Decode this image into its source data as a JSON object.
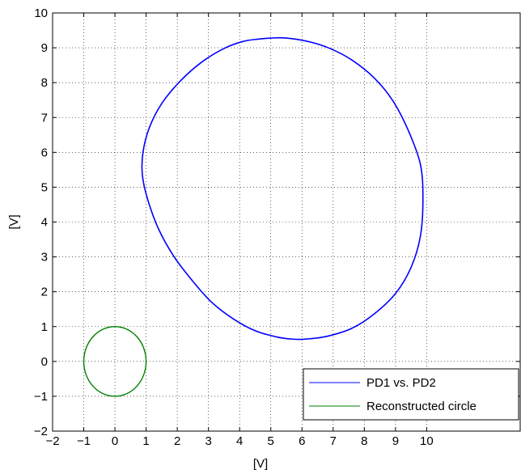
{
  "chart_data": {
    "type": "line",
    "title": "",
    "xlabel": "[V]",
    "ylabel": "[V]",
    "xlim": [
      -2,
      13
    ],
    "ylim": [
      -2,
      10
    ],
    "xticks": [
      -2,
      -1,
      0,
      1,
      2,
      3,
      4,
      5,
      6,
      7,
      8,
      9,
      10
    ],
    "yticks": [
      -2,
      -1,
      0,
      1,
      2,
      3,
      4,
      5,
      6,
      7,
      8,
      9,
      10
    ],
    "xtick_labels": [
      "−2",
      "−1",
      "0",
      "1",
      "2",
      "3",
      "4",
      "5",
      "6",
      "7",
      "8",
      "9",
      "10"
    ],
    "ytick_labels": [
      "−2",
      "−1",
      "0",
      "1",
      "2",
      "3",
      "4",
      "5",
      "6",
      "7",
      "8",
      "9",
      "10"
    ],
    "grid": true,
    "legend_position": "bottom-right",
    "series": [
      {
        "name": "PD1 vs. PD2",
        "color": "#0000ff",
        "x": [
          4.6,
          5.0,
          5.5,
          6.2,
          6.9,
          7.6,
          8.3,
          8.9,
          9.4,
          9.8,
          9.88,
          9.8,
          9.5,
          9.0,
          8.3,
          7.6,
          6.8,
          6.1,
          5.7,
          5.2,
          4.5,
          3.8,
          3.1,
          2.5,
          1.9,
          1.4,
          1.05,
          0.88,
          0.9,
          1.1,
          1.5,
          2.1,
          2.8,
          3.5,
          4.1,
          4.6
        ],
        "y": [
          9.25,
          9.28,
          9.28,
          9.18,
          8.98,
          8.65,
          8.15,
          7.5,
          6.65,
          5.65,
          4.65,
          3.6,
          2.7,
          1.95,
          1.35,
          0.95,
          0.72,
          0.64,
          0.64,
          0.7,
          0.88,
          1.22,
          1.7,
          2.3,
          3.0,
          3.8,
          4.65,
          5.35,
          6.0,
          6.7,
          7.4,
          8.05,
          8.6,
          8.98,
          9.18,
          9.25
        ]
      },
      {
        "name": "Reconstructed circle",
        "color": "#008000",
        "shape": "circle",
        "center": [
          0,
          0
        ],
        "radius": 1
      }
    ]
  }
}
